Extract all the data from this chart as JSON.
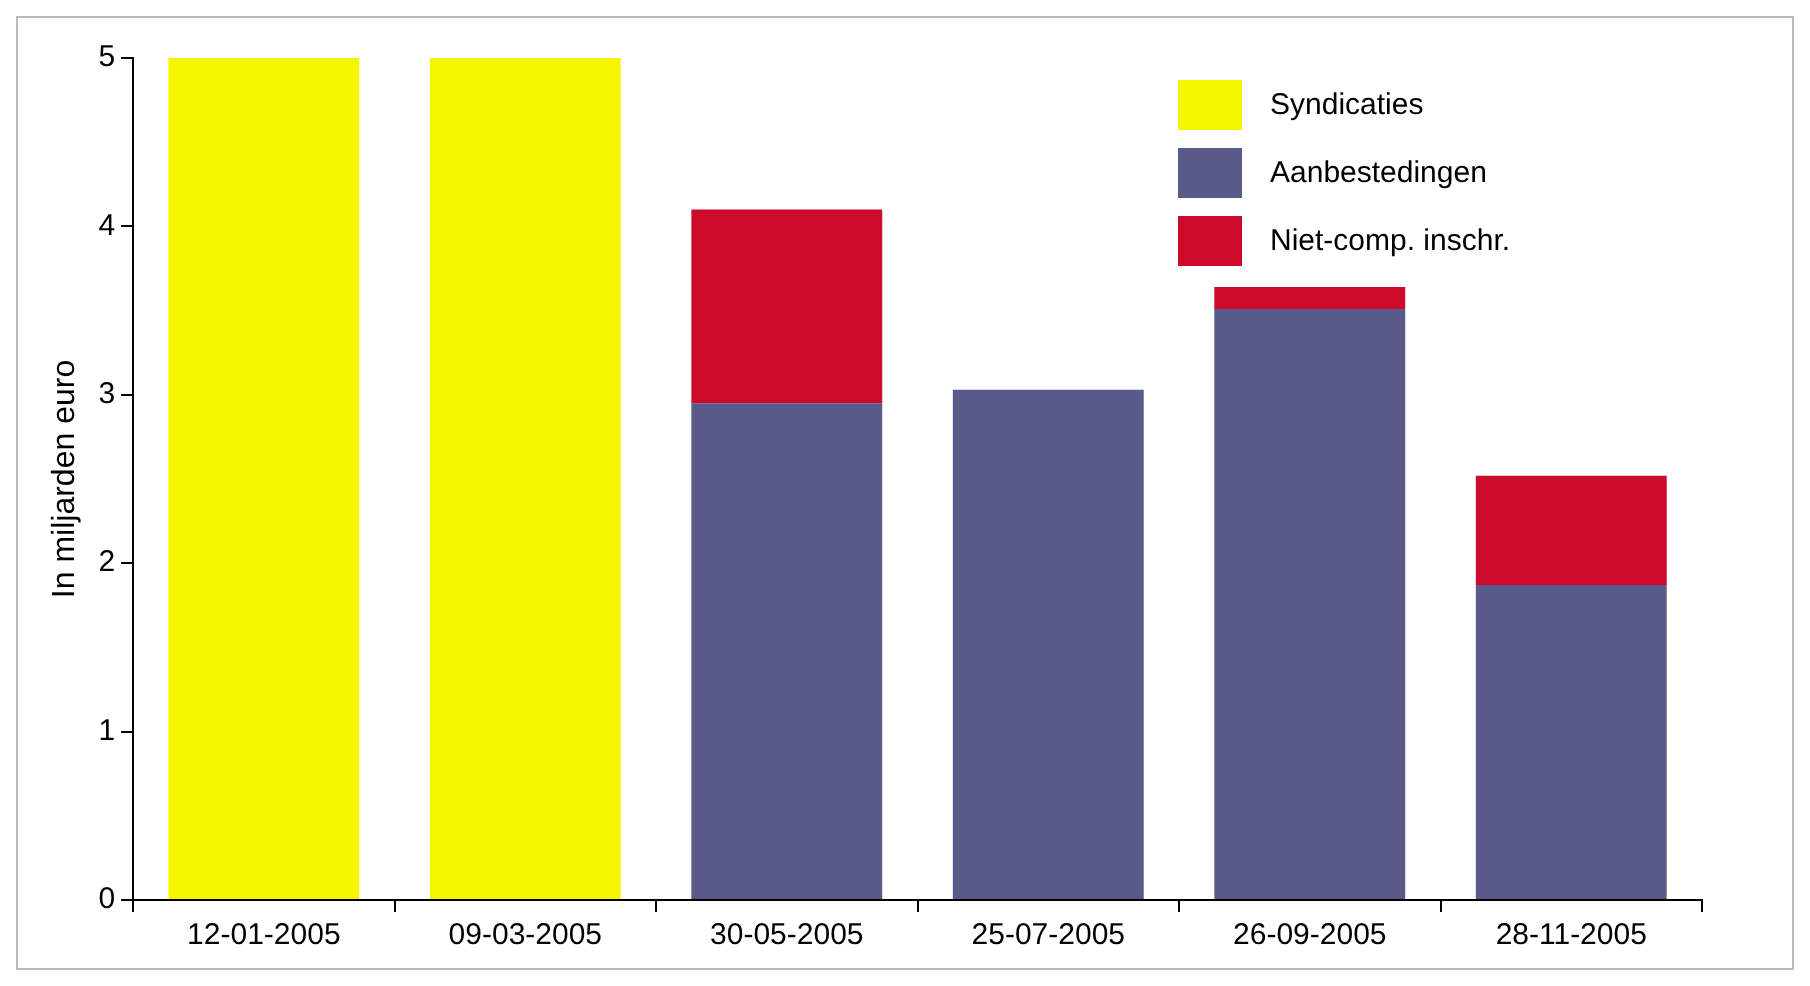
{
  "chart_data": {
    "type": "bar",
    "ylabel": "In miljarden euro",
    "categories": [
      "12-01-2005",
      "09-03-2005",
      "30-05-2005",
      "25-07-2005",
      "26-09-2005",
      "28-11-2005"
    ],
    "stacked": true,
    "series": [
      {
        "name": "Syndicaties",
        "color": "#f5f500",
        "values": [
          5,
          5,
          null,
          null,
          null,
          null
        ]
      },
      {
        "name": "Aanbestedingen",
        "color": "#585a8a",
        "values": [
          null,
          null,
          2.95,
          3.03,
          3.51,
          1.87
        ]
      },
      {
        "name": "Niet-comp. inschr.",
        "color": "#cc0a2a",
        "values": [
          null,
          null,
          1.15,
          null,
          0.13,
          0.65
        ]
      }
    ],
    "ylim": [
      0,
      5
    ],
    "yticks": [
      0,
      1,
      2,
      3,
      4,
      5
    ],
    "grid": false,
    "legend": "top right"
  }
}
